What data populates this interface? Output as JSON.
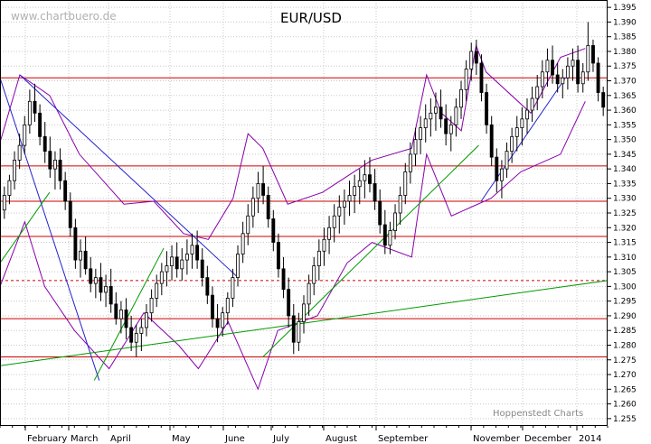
{
  "chart_data": {
    "type": "candlestick",
    "title": "EUR/USD",
    "watermark": "www.chartbuero.de",
    "credit": "Hoppenstedt Charts",
    "ylim": [
      1.2525,
      1.3975
    ],
    "y_ticks": [
      1.255,
      1.26,
      1.265,
      1.27,
      1.275,
      1.28,
      1.285,
      1.29,
      1.295,
      1.3,
      1.305,
      1.31,
      1.315,
      1.32,
      1.325,
      1.33,
      1.335,
      1.34,
      1.345,
      1.35,
      1.355,
      1.36,
      1.365,
      1.37,
      1.375,
      1.38,
      1.385,
      1.39,
      1.395
    ],
    "months": [
      "February",
      "March",
      "April",
      "May",
      "June",
      "July",
      "August",
      "September",
      "November",
      "December",
      "2014"
    ],
    "grid": true,
    "horizontal_lines": [
      {
        "value": 1.371,
        "color": "#cc0000",
        "style": "solid"
      },
      {
        "value": 1.341,
        "color": "#cc0000",
        "style": "solid"
      },
      {
        "value": 1.329,
        "color": "#cc0000",
        "style": "solid"
      },
      {
        "value": 1.317,
        "color": "#cc0000",
        "style": "solid"
      },
      {
        "value": 1.302,
        "color": "#cc0000",
        "style": "dashed"
      },
      {
        "value": 1.289,
        "color": "#cc0000",
        "style": "solid"
      },
      {
        "value": 1.276,
        "color": "#cc0000",
        "style": "solid"
      }
    ],
    "trendlines": [
      {
        "color": "#2222cc",
        "points": [
          [
            0,
            1.371
          ],
          [
            40,
            1.268
          ]
        ]
      },
      {
        "color": "#2222cc",
        "points": [
          [
            8,
            1.372
          ],
          [
            96,
            1.303
          ]
        ]
      },
      {
        "color": "#2222cc",
        "points": [
          [
            194,
            1.329
          ],
          [
            228,
            1.371
          ]
        ]
      },
      {
        "color": "#009900",
        "points": [
          [
            0,
            1.308
          ],
          [
            20,
            1.332
          ]
        ]
      },
      {
        "color": "#009900",
        "points": [
          [
            38,
            1.268
          ],
          [
            66,
            1.313
          ]
        ]
      },
      {
        "color": "#009900",
        "points": [
          [
            0,
            1.273
          ],
          [
            245,
            1.302
          ]
        ]
      },
      {
        "color": "#009900",
        "points": [
          [
            106,
            1.276
          ],
          [
            193,
            1.348
          ]
        ]
      }
    ],
    "bollinger": [
      {
        "name": "upper",
        "color": "#8800aa",
        "points": [
          [
            0,
            1.349
          ],
          [
            8,
            1.372
          ],
          [
            20,
            1.365
          ],
          [
            32,
            1.345
          ],
          [
            50,
            1.328
          ],
          [
            62,
            1.329
          ],
          [
            74,
            1.318
          ],
          [
            84,
            1.316
          ],
          [
            94,
            1.33
          ],
          [
            100,
            1.352
          ],
          [
            106,
            1.347
          ],
          [
            116,
            1.328
          ],
          [
            130,
            1.332
          ],
          [
            150,
            1.343
          ],
          [
            166,
            1.347
          ],
          [
            172,
            1.372
          ],
          [
            178,
            1.359
          ],
          [
            186,
            1.353
          ],
          [
            192,
            1.382
          ],
          [
            196,
            1.373
          ],
          [
            214,
            1.359
          ],
          [
            226,
            1.378
          ],
          [
            236,
            1.381
          ]
        ]
      },
      {
        "name": "lower",
        "color": "#8800aa",
        "points": [
          [
            0,
            1.3
          ],
          [
            10,
            1.322
          ],
          [
            18,
            1.3
          ],
          [
            30,
            1.285
          ],
          [
            44,
            1.272
          ],
          [
            58,
            1.291
          ],
          [
            72,
            1.28
          ],
          [
            80,
            1.272
          ],
          [
            92,
            1.288
          ],
          [
            104,
            1.265
          ],
          [
            112,
            1.285
          ],
          [
            128,
            1.29
          ],
          [
            140,
            1.308
          ],
          [
            150,
            1.315
          ],
          [
            166,
            1.31
          ],
          [
            172,
            1.345
          ],
          [
            182,
            1.324
          ],
          [
            190,
            1.327
          ],
          [
            198,
            1.33
          ],
          [
            210,
            1.339
          ],
          [
            226,
            1.345
          ],
          [
            236,
            1.363
          ]
        ]
      }
    ],
    "candles": [
      [
        1.326,
        1.334,
        1.323,
        1.331
      ],
      [
        1.331,
        1.338,
        1.328,
        1.336
      ],
      [
        1.336,
        1.346,
        1.333,
        1.343
      ],
      [
        1.343,
        1.352,
        1.34,
        1.348
      ],
      [
        1.348,
        1.358,
        1.345,
        1.355
      ],
      [
        1.355,
        1.367,
        1.352,
        1.363
      ],
      [
        1.363,
        1.369,
        1.356,
        1.359
      ],
      [
        1.359,
        1.362,
        1.348,
        1.351
      ],
      [
        1.351,
        1.356,
        1.342,
        1.346
      ],
      [
        1.346,
        1.351,
        1.337,
        1.34
      ],
      [
        1.34,
        1.346,
        1.333,
        1.343
      ],
      [
        1.343,
        1.347,
        1.333,
        1.336
      ],
      [
        1.336,
        1.339,
        1.326,
        1.329
      ],
      [
        1.329,
        1.332,
        1.317,
        1.32
      ],
      [
        1.32,
        1.323,
        1.306,
        1.309
      ],
      [
        1.309,
        1.316,
        1.303,
        1.312
      ],
      [
        1.312,
        1.317,
        1.304,
        1.306
      ],
      [
        1.306,
        1.31,
        1.298,
        1.301
      ],
      [
        1.301,
        1.306,
        1.296,
        1.303
      ],
      [
        1.303,
        1.308,
        1.295,
        1.298
      ],
      [
        1.298,
        1.304,
        1.293,
        1.3
      ],
      [
        1.3,
        1.306,
        1.291,
        1.294
      ],
      [
        1.294,
        1.298,
        1.287,
        1.289
      ],
      [
        1.289,
        1.295,
        1.284,
        1.292
      ],
      [
        1.292,
        1.296,
        1.282,
        1.286
      ],
      [
        1.286,
        1.29,
        1.278,
        1.281
      ],
      [
        1.281,
        1.287,
        1.276,
        1.284
      ],
      [
        1.284,
        1.289,
        1.278,
        1.286
      ],
      [
        1.286,
        1.294,
        1.283,
        1.291
      ],
      [
        1.291,
        1.299,
        1.288,
        1.296
      ],
      [
        1.296,
        1.304,
        1.293,
        1.301
      ],
      [
        1.301,
        1.308,
        1.297,
        1.305
      ],
      [
        1.305,
        1.312,
        1.3,
        1.307
      ],
      [
        1.307,
        1.314,
        1.302,
        1.31
      ],
      [
        1.31,
        1.315,
        1.303,
        1.306
      ],
      [
        1.306,
        1.313,
        1.302,
        1.309
      ],
      [
        1.309,
        1.316,
        1.304,
        1.311
      ],
      [
        1.311,
        1.318,
        1.306,
        1.314
      ],
      [
        1.314,
        1.319,
        1.306,
        1.309
      ],
      [
        1.309,
        1.313,
        1.3,
        1.303
      ],
      [
        1.303,
        1.307,
        1.294,
        1.297
      ],
      [
        1.297,
        1.3,
        1.286,
        1.289
      ],
      [
        1.289,
        1.294,
        1.281,
        1.286
      ],
      [
        1.286,
        1.293,
        1.283,
        1.291
      ],
      [
        1.291,
        1.298,
        1.287,
        1.296
      ],
      [
        1.296,
        1.306,
        1.293,
        1.303
      ],
      [
        1.303,
        1.314,
        1.3,
        1.311
      ],
      [
        1.311,
        1.322,
        1.308,
        1.318
      ],
      [
        1.318,
        1.328,
        1.314,
        1.324
      ],
      [
        1.324,
        1.334,
        1.32,
        1.33
      ],
      [
        1.33,
        1.339,
        1.325,
        1.335
      ],
      [
        1.335,
        1.341,
        1.328,
        1.331
      ],
      [
        1.331,
        1.334,
        1.32,
        1.323
      ],
      [
        1.323,
        1.326,
        1.312,
        1.315
      ],
      [
        1.315,
        1.318,
        1.303,
        1.306
      ],
      [
        1.306,
        1.31,
        1.296,
        1.299
      ],
      [
        1.299,
        1.303,
        1.286,
        1.29
      ],
      [
        1.29,
        1.294,
        1.277,
        1.281
      ],
      [
        1.281,
        1.291,
        1.278,
        1.288
      ],
      [
        1.288,
        1.297,
        1.284,
        1.294
      ],
      [
        1.294,
        1.304,
        1.29,
        1.301
      ],
      [
        1.301,
        1.31,
        1.297,
        1.307
      ],
      [
        1.307,
        1.316,
        1.302,
        1.312
      ],
      [
        1.312,
        1.32,
        1.307,
        1.316
      ],
      [
        1.316,
        1.324,
        1.311,
        1.32
      ],
      [
        1.32,
        1.328,
        1.315,
        1.324
      ],
      [
        1.324,
        1.331,
        1.318,
        1.327
      ],
      [
        1.327,
        1.333,
        1.321,
        1.329
      ],
      [
        1.329,
        1.336,
        1.324,
        1.331
      ],
      [
        1.331,
        1.338,
        1.325,
        1.334
      ],
      [
        1.334,
        1.34,
        1.328,
        1.336
      ],
      [
        1.336,
        1.343,
        1.33,
        1.338
      ],
      [
        1.338,
        1.344,
        1.332,
        1.335
      ],
      [
        1.335,
        1.34,
        1.326,
        1.329
      ],
      [
        1.329,
        1.333,
        1.318,
        1.321
      ],
      [
        1.321,
        1.326,
        1.311,
        1.314
      ],
      [
        1.314,
        1.322,
        1.311,
        1.319
      ],
      [
        1.319,
        1.328,
        1.316,
        1.325
      ],
      [
        1.325,
        1.334,
        1.321,
        1.331
      ],
      [
        1.331,
        1.342,
        1.328,
        1.339
      ],
      [
        1.339,
        1.349,
        1.335,
        1.345
      ],
      [
        1.345,
        1.354,
        1.341,
        1.35
      ],
      [
        1.35,
        1.358,
        1.345,
        1.354
      ],
      [
        1.354,
        1.362,
        1.349,
        1.357
      ],
      [
        1.357,
        1.364,
        1.351,
        1.359
      ],
      [
        1.359,
        1.366,
        1.353,
        1.361
      ],
      [
        1.361,
        1.367,
        1.354,
        1.357
      ],
      [
        1.357,
        1.362,
        1.348,
        1.352
      ],
      [
        1.352,
        1.358,
        1.346,
        1.355
      ],
      [
        1.355,
        1.364,
        1.351,
        1.361
      ],
      [
        1.361,
        1.37,
        1.357,
        1.367
      ],
      [
        1.367,
        1.377,
        1.363,
        1.374
      ],
      [
        1.374,
        1.383,
        1.37,
        1.38
      ],
      [
        1.38,
        1.384,
        1.372,
        1.376
      ],
      [
        1.376,
        1.379,
        1.363,
        1.366
      ],
      [
        1.366,
        1.369,
        1.352,
        1.355
      ],
      [
        1.355,
        1.358,
        1.341,
        1.344
      ],
      [
        1.344,
        1.347,
        1.332,
        1.336
      ],
      [
        1.336,
        1.343,
        1.33,
        1.34
      ],
      [
        1.34,
        1.349,
        1.337,
        1.346
      ],
      [
        1.346,
        1.354,
        1.342,
        1.351
      ],
      [
        1.351,
        1.358,
        1.346,
        1.354
      ],
      [
        1.354,
        1.361,
        1.348,
        1.357
      ],
      [
        1.357,
        1.364,
        1.352,
        1.36
      ],
      [
        1.36,
        1.368,
        1.356,
        1.364
      ],
      [
        1.364,
        1.372,
        1.36,
        1.368
      ],
      [
        1.368,
        1.377,
        1.364,
        1.373
      ],
      [
        1.373,
        1.381,
        1.368,
        1.377
      ],
      [
        1.377,
        1.382,
        1.369,
        1.372
      ],
      [
        1.372,
        1.376,
        1.366,
        1.369
      ],
      [
        1.369,
        1.374,
        1.364,
        1.371
      ],
      [
        1.371,
        1.378,
        1.367,
        1.375
      ],
      [
        1.375,
        1.381,
        1.37,
        1.377
      ],
      [
        1.377,
        1.382,
        1.366,
        1.369
      ],
      [
        1.369,
        1.376,
        1.366,
        1.373
      ],
      [
        1.373,
        1.39,
        1.37,
        1.382
      ],
      [
        1.382,
        1.384,
        1.373,
        1.376
      ],
      [
        1.376,
        1.378,
        1.363,
        1.366
      ],
      [
        1.366,
        1.368,
        1.358,
        1.361
      ]
    ]
  }
}
